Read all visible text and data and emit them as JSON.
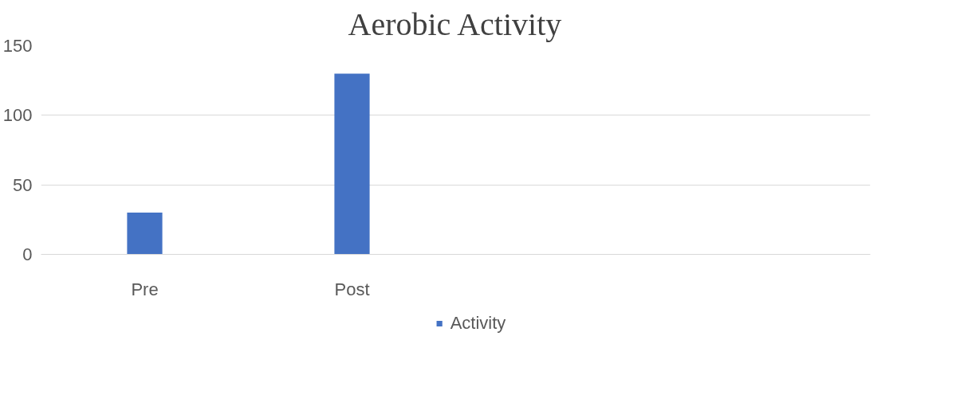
{
  "chart_data": {
    "type": "bar",
    "title": "Aerobic Activity",
    "categories": [
      "Pre",
      "Post",
      null,
      null
    ],
    "series": [
      {
        "name": "Activity",
        "color": "#4472c4",
        "values": [
          30,
          130,
          null,
          null
        ]
      }
    ],
    "ylim": [
      0,
      150
    ],
    "yticks": [
      0,
      50,
      100,
      150
    ],
    "grid": "y",
    "legend": "bottom"
  }
}
